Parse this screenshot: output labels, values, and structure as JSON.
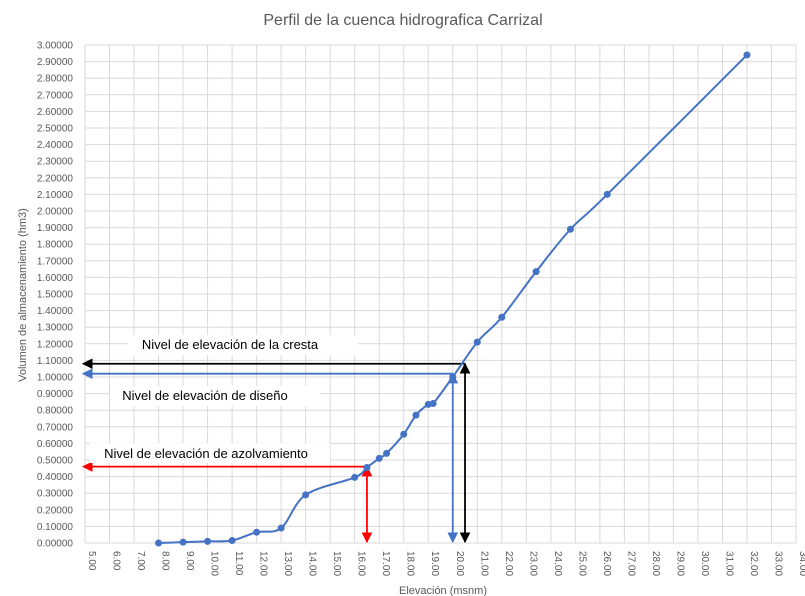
{
  "chart_data": {
    "type": "line",
    "title": "Perfil de la cuenca hidrografica Carrizal",
    "xlabel": "Elevación (msnm)",
    "ylabel": "Volumen de almacenamiento (hm3)",
    "xlim": [
      5,
      34
    ],
    "ylim": [
      0,
      3
    ],
    "x_ticks": [
      "5.00",
      "6.00",
      "7.00",
      "8.00",
      "9.00",
      "10.00",
      "11.00",
      "12.00",
      "13.00",
      "14.00",
      "15.00",
      "16.00",
      "17.00",
      "18.00",
      "19.00",
      "20.00",
      "21.00",
      "22.00",
      "23.00",
      "24.00",
      "25.00",
      "26.00",
      "27.00",
      "28.00",
      "29.00",
      "30.00",
      "31.00",
      "32.00",
      "33.00",
      "34.00"
    ],
    "y_ticks": [
      "0.00000",
      "0.10000",
      "0.20000",
      "0.30000",
      "0.40000",
      "0.50000",
      "0.60000",
      "0.70000",
      "0.80000",
      "0.90000",
      "1.00000",
      "1.10000",
      "1.20000",
      "1.30000",
      "1.40000",
      "1.50000",
      "1.60000",
      "1.70000",
      "1.80000",
      "1.90000",
      "2.00000",
      "2.10000",
      "2.20000",
      "2.30000",
      "2.40000",
      "2.50000",
      "2.60000",
      "2.70000",
      "2.80000",
      "2.90000",
      "3.00000"
    ],
    "grid": true,
    "legend": "none",
    "series": [
      {
        "color": "#4472C4",
        "points": [
          [
            8.0,
            0.0
          ],
          [
            9.0,
            0.005
          ],
          [
            10.0,
            0.01
          ],
          [
            11.0,
            0.015
          ],
          [
            12.0,
            0.065
          ],
          [
            13.0,
            0.09
          ],
          [
            14.0,
            0.29
          ],
          [
            16.0,
            0.395
          ],
          [
            16.5,
            0.455
          ],
          [
            17.0,
            0.51
          ],
          [
            17.3,
            0.54
          ],
          [
            18.0,
            0.655
          ],
          [
            18.5,
            0.77
          ],
          [
            19.0,
            0.835
          ],
          [
            19.2,
            0.84
          ],
          [
            20.0,
            1.0
          ],
          [
            21.0,
            1.21
          ],
          [
            22.0,
            1.36
          ],
          [
            23.4,
            1.635
          ],
          [
            24.8,
            1.89
          ],
          [
            26.3,
            2.1
          ],
          [
            32.0,
            2.94
          ]
        ]
      }
    ],
    "annotations": [
      {
        "text": "Nivel de elevación de la cresta",
        "level": 1.08,
        "x": 20.5,
        "color": "#000000"
      },
      {
        "text": "Nivel de elevación de diseño",
        "level": 1.02,
        "x": 20.0,
        "color": "#4472C4"
      },
      {
        "text": "Nivel de elevación de azolvamiento",
        "level": 0.46,
        "x": 16.5,
        "color": "#FF0000"
      }
    ]
  }
}
